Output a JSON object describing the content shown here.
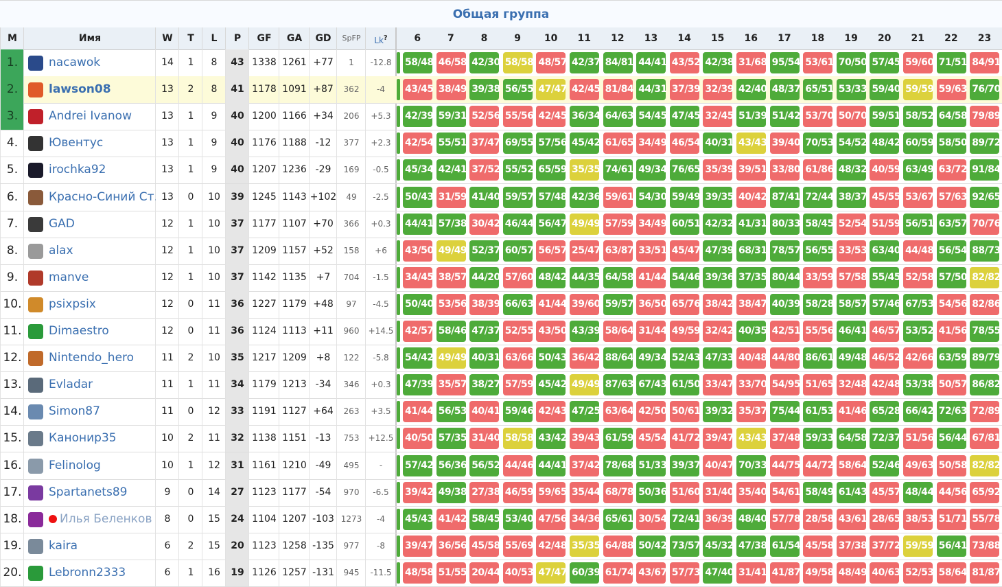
{
  "title": "Общая группа",
  "headers": {
    "m": "М",
    "name": "Имя",
    "w": "W",
    "t": "T",
    "l": "L",
    "p": "P",
    "gf": "GF",
    "ga": "GA",
    "gd": "GD",
    "spfp": "SpFP",
    "lk": "Lk",
    "lk_help": "?"
  },
  "rounds": [
    "6",
    "7",
    "8",
    "9",
    "10",
    "11",
    "12",
    "13",
    "14",
    "15",
    "16",
    "17",
    "18",
    "19",
    "20",
    "21",
    "22",
    "23"
  ],
  "colors": {
    "win": "#4eab3a",
    "loss": "#ef6b6b",
    "draw": "#dcd13c",
    "link": "#3a6fb0",
    "top3": "#3ca65a"
  },
  "rows": [
    {
      "rank": "1.",
      "name": "nacawok",
      "avatar": "#2a4a8a",
      "w": "14",
      "t": "1",
      "l": "8",
      "p": "43",
      "gf": "1338",
      "ga": "1261",
      "gd": "+77",
      "spfp": "1",
      "lk": "-12.8",
      "res": [
        "58/48",
        "46/58",
        "42/30",
        "58/58",
        "48/57",
        "42/37",
        "84/81",
        "44/41",
        "43/52",
        "42/38",
        "31/68",
        "95/54",
        "53/61",
        "70/50",
        "57/45",
        "59/60",
        "71/51",
        "84/91"
      ]
    },
    {
      "rank": "2.",
      "name": "lawson08",
      "avatar": "#e05a2a",
      "w": "13",
      "t": "2",
      "l": "8",
      "p": "41",
      "gf": "1178",
      "ga": "1091",
      "gd": "+87",
      "spfp": "362",
      "lk": "-4",
      "res": [
        "43/45",
        "38/49",
        "39/38",
        "56/55",
        "47/47",
        "42/45",
        "81/84",
        "44/31",
        "37/39",
        "32/39",
        "42/40",
        "48/37",
        "65/51",
        "53/33",
        "59/40",
        "59/59",
        "59/63",
        "76/70"
      ]
    },
    {
      "rank": "3.",
      "name": "Andrei Ivanow",
      "avatar": "#c0202a",
      "w": "13",
      "t": "1",
      "l": "9",
      "p": "40",
      "gf": "1200",
      "ga": "1166",
      "gd": "+34",
      "spfp": "206",
      "lk": "+5.3",
      "res": [
        "42/39",
        "59/31",
        "52/56",
        "55/56",
        "42/45",
        "36/34",
        "64/63",
        "54/45",
        "47/45",
        "32/45",
        "51/39",
        "51/42",
        "53/70",
        "50/70",
        "59/51",
        "58/52",
        "64/58",
        "79/89"
      ]
    },
    {
      "rank": "4.",
      "name": "Ювентус",
      "avatar": "#333333",
      "w": "13",
      "t": "1",
      "l": "9",
      "p": "40",
      "gf": "1176",
      "ga": "1188",
      "gd": "-12",
      "spfp": "377",
      "lk": "+2.3",
      "res": [
        "42/54",
        "55/51",
        "37/47",
        "69/55",
        "57/56",
        "45/42",
        "61/65",
        "34/49",
        "46/54",
        "40/31",
        "43/43",
        "39/40",
        "70/53",
        "54/52",
        "48/42",
        "60/59",
        "58/50",
        "89/72"
      ]
    },
    {
      "rank": "5.",
      "name": "irochka92",
      "avatar": "#1a1a2a",
      "w": "13",
      "t": "1",
      "l": "9",
      "p": "40",
      "gf": "1207",
      "ga": "1236",
      "gd": "-29",
      "spfp": "169",
      "lk": "-0.5",
      "res": [
        "45/34",
        "42/41",
        "37/52",
        "55/52",
        "65/59",
        "35/35",
        "74/61",
        "49/34",
        "76/65",
        "35/39",
        "39/51",
        "33/80",
        "61/86",
        "48/32",
        "40/59",
        "63/49",
        "63/72",
        "91/84"
      ]
    },
    {
      "rank": "6.",
      "name": "Красно-Синий Ст…",
      "avatar": "#8a5a3a",
      "w": "13",
      "t": "0",
      "l": "10",
      "p": "39",
      "gf": "1245",
      "ga": "1143",
      "gd": "+102",
      "spfp": "49",
      "lk": "-2.5",
      "res": [
        "50/43",
        "31/59",
        "41/40",
        "59/57",
        "57/48",
        "42/36",
        "59/61",
        "54/30",
        "59/49",
        "39/35",
        "40/42",
        "87/41",
        "72/44",
        "38/37",
        "45/55",
        "53/67",
        "57/63",
        "92/65"
      ]
    },
    {
      "rank": "7.",
      "name": "GAD",
      "avatar": "#3a3a3a",
      "w": "12",
      "t": "1",
      "l": "10",
      "p": "37",
      "gf": "1177",
      "ga": "1107",
      "gd": "+70",
      "spfp": "366",
      "lk": "+0.3",
      "res": [
        "44/41",
        "57/38",
        "30/42",
        "46/44",
        "56/47",
        "49/49",
        "57/59",
        "34/49",
        "60/51",
        "42/32",
        "41/31",
        "80/33",
        "58/45",
        "52/54",
        "51/59",
        "56/51",
        "63/57",
        "70/76"
      ]
    },
    {
      "rank": "8.",
      "name": "alax",
      "avatar": "#9a9a9a",
      "w": "12",
      "t": "1",
      "l": "10",
      "p": "37",
      "gf": "1209",
      "ga": "1157",
      "gd": "+52",
      "spfp": "158",
      "lk": "+6",
      "res": [
        "43/50",
        "49/49",
        "52/37",
        "60/57",
        "56/57",
        "25/47",
        "63/87",
        "33/51",
        "45/47",
        "47/39",
        "68/31",
        "78/57",
        "56/55",
        "33/53",
        "63/40",
        "44/48",
        "56/54",
        "88/73"
      ]
    },
    {
      "rank": "9.",
      "name": "manve",
      "avatar": "#b03a2a",
      "w": "12",
      "t": "1",
      "l": "10",
      "p": "37",
      "gf": "1142",
      "ga": "1135",
      "gd": "+7",
      "spfp": "704",
      "lk": "-1.5",
      "res": [
        "34/45",
        "38/57",
        "44/20",
        "57/60",
        "48/42",
        "44/35",
        "64/58",
        "41/44",
        "54/46",
        "39/36",
        "37/35",
        "80/44",
        "33/59",
        "57/58",
        "55/45",
        "52/58",
        "57/50",
        "82/82"
      ]
    },
    {
      "rank": "10.",
      "name": "psixpsix",
      "avatar": "#d08a2a",
      "w": "12",
      "t": "0",
      "l": "11",
      "p": "36",
      "gf": "1227",
      "ga": "1179",
      "gd": "+48",
      "spfp": "97",
      "lk": "-4.5",
      "res": [
        "50/40",
        "53/56",
        "38/39",
        "66/63",
        "41/44",
        "39/60",
        "59/57",
        "36/50",
        "65/76",
        "38/42",
        "38/47",
        "40/39",
        "58/28",
        "58/57",
        "57/46",
        "67/53",
        "54/56",
        "82/86"
      ]
    },
    {
      "rank": "11.",
      "name": "Dimaestro",
      "avatar": "#2a9a3a",
      "w": "12",
      "t": "0",
      "l": "11",
      "p": "36",
      "gf": "1124",
      "ga": "1113",
      "gd": "+11",
      "spfp": "960",
      "lk": "+14.5",
      "res": [
        "42/57",
        "58/46",
        "47/37",
        "52/55",
        "43/50",
        "43/39",
        "58/64",
        "31/44",
        "49/59",
        "32/42",
        "40/35",
        "42/51",
        "55/56",
        "46/41",
        "46/57",
        "53/52",
        "41/56",
        "78/55"
      ]
    },
    {
      "rank": "12.",
      "name": "Nintendo_hero",
      "avatar": "#c06a2a",
      "w": "11",
      "t": "2",
      "l": "10",
      "p": "35",
      "gf": "1217",
      "ga": "1209",
      "gd": "+8",
      "spfp": "122",
      "lk": "-5.8",
      "res": [
        "54/42",
        "49/49",
        "40/31",
        "63/66",
        "50/43",
        "36/42",
        "88/64",
        "49/34",
        "52/43",
        "47/33",
        "40/48",
        "44/80",
        "86/61",
        "49/48",
        "46/52",
        "42/66",
        "63/59",
        "89/79"
      ]
    },
    {
      "rank": "13.",
      "name": "Evladar",
      "avatar": "#5a6a7a",
      "w": "11",
      "t": "1",
      "l": "11",
      "p": "34",
      "gf": "1179",
      "ga": "1213",
      "gd": "-34",
      "spfp": "346",
      "lk": "+0.3",
      "res": [
        "47/39",
        "35/57",
        "38/27",
        "57/59",
        "45/42",
        "49/49",
        "87/63",
        "67/43",
        "61/50",
        "33/47",
        "33/70",
        "54/95",
        "51/65",
        "32/48",
        "42/48",
        "53/38",
        "50/57",
        "86/82"
      ]
    },
    {
      "rank": "14.",
      "name": "Simon87",
      "avatar": "#6a8ab0",
      "w": "11",
      "t": "0",
      "l": "12",
      "p": "33",
      "gf": "1191",
      "ga": "1127",
      "gd": "+64",
      "spfp": "263",
      "lk": "+3.5",
      "res": [
        "41/44",
        "56/53",
        "40/41",
        "59/46",
        "42/43",
        "47/25",
        "63/64",
        "42/50",
        "50/61",
        "39/32",
        "35/37",
        "75/44",
        "61/53",
        "41/46",
        "65/28",
        "66/42",
        "72/63",
        "72/89"
      ]
    },
    {
      "rank": "15.",
      "name": "Канонир35",
      "avatar": "#6a7a8a",
      "w": "10",
      "t": "2",
      "l": "11",
      "p": "32",
      "gf": "1138",
      "ga": "1151",
      "gd": "-13",
      "spfp": "753",
      "lk": "+12.5",
      "res": [
        "40/50",
        "57/35",
        "31/40",
        "58/58",
        "43/42",
        "39/43",
        "61/59",
        "45/54",
        "41/72",
        "39/47",
        "43/43",
        "37/48",
        "59/33",
        "64/58",
        "72/37",
        "51/56",
        "56/44",
        "67/81"
      ]
    },
    {
      "rank": "16.",
      "name": "Felinolog",
      "avatar": "#8a9aaa",
      "w": "10",
      "t": "1",
      "l": "12",
      "p": "31",
      "gf": "1161",
      "ga": "1210",
      "gd": "-49",
      "spfp": "495",
      "lk": "-",
      "res": [
        "57/42",
        "56/36",
        "56/52",
        "44/46",
        "44/41",
        "37/42",
        "78/68",
        "51/33",
        "39/37",
        "40/47",
        "70/33",
        "44/75",
        "44/72",
        "58/64",
        "52/46",
        "49/63",
        "50/58",
        "82/82"
      ]
    },
    {
      "rank": "17.",
      "name": "Spartanets89",
      "avatar": "#7a3aa0",
      "w": "9",
      "t": "0",
      "l": "14",
      "p": "27",
      "gf": "1123",
      "ga": "1177",
      "gd": "-54",
      "spfp": "970",
      "lk": "-6.5",
      "res": [
        "39/42",
        "49/38",
        "27/38",
        "46/59",
        "59/65",
        "35/44",
        "68/78",
        "50/36",
        "51/60",
        "31/40",
        "35/40",
        "54/61",
        "58/49",
        "61/43",
        "45/57",
        "48/44",
        "44/56",
        "65/92"
      ]
    },
    {
      "rank": "18.",
      "name": "Илья Беленков",
      "avatar": "#8a2a9a",
      "w": "8",
      "t": "0",
      "l": "15",
      "p": "24",
      "gf": "1104",
      "ga": "1207",
      "gd": "-103",
      "spfp": "1273",
      "lk": "-4",
      "res": [
        "45/43",
        "41/42",
        "58/45",
        "53/40",
        "47/56",
        "34/36",
        "65/61",
        "30/54",
        "72/41",
        "36/39",
        "48/40",
        "57/78",
        "28/58",
        "43/61",
        "28/65",
        "38/53",
        "51/71",
        "55/78"
      ]
    },
    {
      "rank": "19.",
      "name": "kaira",
      "avatar": "#7a8a9a",
      "w": "6",
      "t": "2",
      "l": "15",
      "p": "20",
      "gf": "1123",
      "ga": "1258",
      "gd": "-135",
      "spfp": "977",
      "lk": "-8",
      "res": [
        "39/47",
        "36/56",
        "45/58",
        "55/69",
        "42/48",
        "35/35",
        "64/88",
        "50/42",
        "73/57",
        "45/32",
        "47/38",
        "61/54",
        "45/58",
        "37/38",
        "37/72",
        "59/59",
        "56/41",
        "73/88"
      ]
    },
    {
      "rank": "20.",
      "name": "Lebronn2333",
      "avatar": "#2a9a3a",
      "w": "6",
      "t": "1",
      "l": "16",
      "p": "19",
      "gf": "1126",
      "ga": "1257",
      "gd": "-131",
      "spfp": "945",
      "lk": "-11.5",
      "res": [
        "48/58",
        "51/55",
        "20/44",
        "40/53",
        "47/47",
        "60/39",
        "61/74",
        "43/67",
        "57/73",
        "47/40",
        "31/41",
        "41/87",
        "49/58",
        "48/49",
        "40/63",
        "52/53",
        "58/64",
        "81/87"
      ]
    }
  ]
}
